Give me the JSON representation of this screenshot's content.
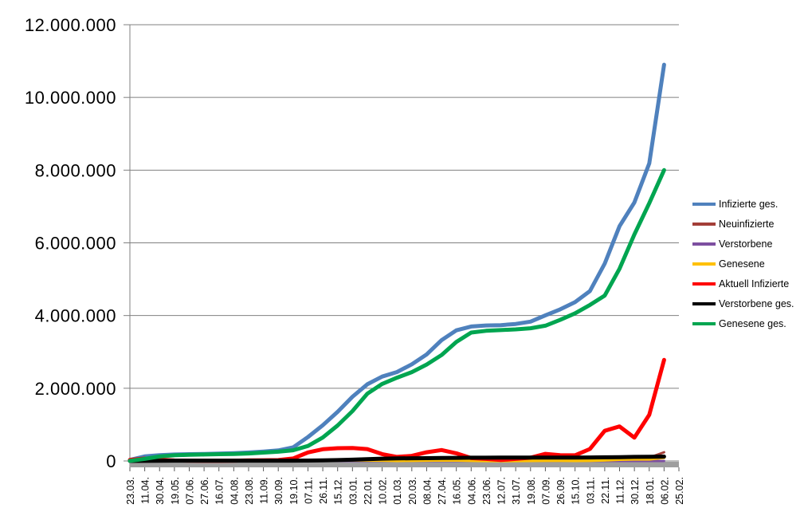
{
  "chart_data": {
    "type": "line",
    "title": "",
    "xlabel": "",
    "ylabel": "",
    "ylim": [
      0,
      12000000
    ],
    "y_step": 2000000,
    "grid": true,
    "legend_position": "right",
    "grid_color": "#808080",
    "axis_bar_color": "#9E9E9E",
    "tick_color": "#595959",
    "text_color": "#000000",
    "y_tick_labels": [
      "0",
      "2.000.000",
      "4.000.000",
      "6.000.000",
      "8.000.000",
      "10.000.000",
      "12.000.000"
    ],
    "x_tick_labels": [
      "23.03.",
      "11.04.",
      "30.04.",
      "19.05.",
      "07.06.",
      "27.06.",
      "16.07.",
      "04.08.",
      "23.08.",
      "11.09.",
      "30.09.",
      "19.10.",
      "07.11.",
      "26.11.",
      "15.12.",
      "03.01.",
      "22.01.",
      "10.02.",
      "01.03.",
      "20.03.",
      "08.04.",
      "27.04.",
      "16.05.",
      "04.06.",
      "23.06.",
      "12.07.",
      "31.07.",
      "19.08.",
      "07.09.",
      "26.09.",
      "15.10.",
      "03.11.",
      "22.11.",
      "11.12.",
      "30.12.",
      "18.01.",
      "06.02.",
      "25.02."
    ],
    "series": [
      {
        "name": "Infizierte ges.",
        "color": "#4F81BD",
        "width": 5,
        "values": [
          29000,
          125000,
          161000,
          177000,
          186000,
          193000,
          201000,
          212000,
          233000,
          259000,
          289000,
          373000,
          658000,
          983000,
          1351000,
          1765000,
          2108000,
          2321000,
          2447000,
          2659000,
          2930000,
          3321000,
          3593000,
          3699000,
          3727000,
          3737000,
          3769000,
          3833000,
          4006000,
          4171000,
          4367000,
          4672000,
          5430000,
          6458000,
          7110000,
          8186000,
          10900000
        ]
      },
      {
        "name": "Neuinfizierte",
        "color": "#A33E38",
        "width": 3,
        "values": [
          4000,
          5000,
          2000,
          1000,
          400,
          600,
          500,
          900,
          1500,
          1800,
          2500,
          7000,
          21000,
          22000,
          27000,
          12000,
          16000,
          8000,
          8000,
          16000,
          25000,
          22000,
          8500,
          3200,
          1000,
          700,
          2600,
          8400,
          12000,
          7800,
          11000,
          24000,
          50000,
          53000,
          40000,
          92000,
          240000
        ]
      },
      {
        "name": "Verstorbene",
        "color": "#7D4FA0",
        "width": 3,
        "values": [
          100,
          180,
          190,
          80,
          30,
          10,
          5,
          10,
          10,
          5,
          15,
          30,
          120,
          400,
          600,
          950,
          850,
          550,
          300,
          90,
          220,
          250,
          180,
          80,
          60,
          20,
          20,
          30,
          60,
          70,
          80,
          120,
          300,
          400,
          350,
          170,
          170
        ]
      },
      {
        "name": "Genesene",
        "color": "#FFC000",
        "width": 3.5,
        "values": [
          1500,
          3500,
          3000,
          1300,
          500,
          500,
          500,
          700,
          1000,
          1400,
          1900,
          4000,
          12000,
          20000,
          22000,
          21000,
          18000,
          13000,
          6500,
          9000,
          14000,
          19000,
          16000,
          8000,
          2500,
          1000,
          1400,
          4000,
          8000,
          8500,
          7000,
          9000,
          20000,
          38000,
          45000,
          46000,
          90000
        ]
      },
      {
        "name": "Aktuell Infizierte",
        "color": "#FF0000",
        "width": 5,
        "values": [
          26000,
          65000,
          32000,
          14000,
          9000,
          7000,
          6000,
          9000,
          18000,
          19000,
          25000,
          68000,
          234000,
          322000,
          352000,
          358000,
          327000,
          188000,
          112000,
          141000,
          240000,
          300000,
          210000,
          79000,
          57000,
          26000,
          57000,
          90000,
          195000,
          160000,
          155000,
          330000,
          830000,
          950000,
          640000,
          1270000,
          2780000
        ]
      },
      {
        "name": "Verstorbene ges.",
        "color": "#000000",
        "width": 5,
        "values": [
          200,
          2800,
          6300,
          8100,
          8700,
          8900,
          9100,
          9200,
          9300,
          9300,
          9500,
          9800,
          11000,
          15000,
          23500,
          34800,
          50600,
          63700,
          70100,
          74600,
          77700,
          82300,
          86100,
          89200,
          90400,
          91200,
          91700,
          91900,
          92400,
          93300,
          94600,
          96000,
          99900,
          105000,
          111000,
          116000,
          120000
        ]
      },
      {
        "name": "Genesene ges.",
        "color": "#00A550",
        "width": 5,
        "values": [
          3000,
          57000,
          123000,
          155000,
          169000,
          177000,
          186000,
          194000,
          206000,
          231000,
          254000,
          295000,
          413000,
          646000,
          976000,
          1372000,
          1850000,
          2120000,
          2290000,
          2444000,
          2653000,
          2913000,
          3276000,
          3531000,
          3580000,
          3600000,
          3620000,
          3650000,
          3720000,
          3880000,
          4060000,
          4290000,
          4550000,
          5290000,
          6230000,
          7090000,
          8000000
        ]
      }
    ]
  }
}
